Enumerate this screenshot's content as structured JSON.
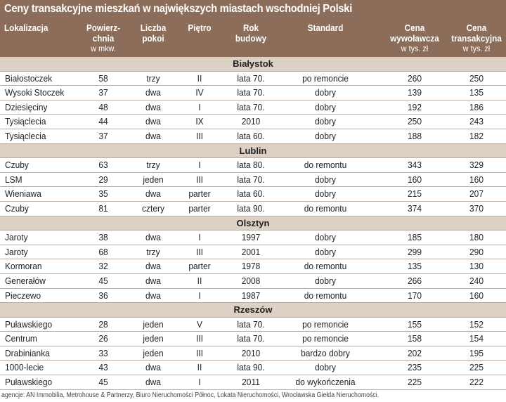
{
  "title": "Ceny transakcyjne mieszkań w największych miastach wschodniej Polski",
  "columns": [
    {
      "label": "Lokalizacja",
      "unit": ""
    },
    {
      "label": "Powierz-\nchnia",
      "unit": "w mkw."
    },
    {
      "label": "Liczba\npokoi",
      "unit": ""
    },
    {
      "label": "Piętro",
      "unit": ""
    },
    {
      "label": "Rok\nbudowy",
      "unit": ""
    },
    {
      "label": "Standard",
      "unit": ""
    },
    {
      "label": "Cena\nwywoławcza",
      "unit": "w tys. zł"
    },
    {
      "label": "Cena\ntransakcyjna",
      "unit": "w tys. zł"
    }
  ],
  "sections": [
    {
      "city": "Białystok",
      "rows": [
        [
          "Białostoczek",
          "58",
          "trzy",
          "II",
          "lata 70.",
          "po remoncie",
          "260",
          "250"
        ],
        [
          "Wysoki Stoczek",
          "37",
          "dwa",
          "IV",
          "lata 70.",
          "dobry",
          "139",
          "135"
        ],
        [
          "Dziesięciny",
          "48",
          "dwa",
          "I",
          "lata 70.",
          "dobry",
          "192",
          "186"
        ],
        [
          "Tysiąclecia",
          "44",
          "dwa",
          "IX",
          "2010",
          "dobry",
          "250",
          "243"
        ],
        [
          "Tysiąclecia",
          "37",
          "dwa",
          "III",
          "lata 60.",
          "dobry",
          "188",
          "182"
        ]
      ]
    },
    {
      "city": "Lublin",
      "rows": [
        [
          "Czuby",
          "63",
          "trzy",
          "I",
          "lata 80.",
          "do remontu",
          "343",
          "329"
        ],
        [
          "LSM",
          "29",
          "jeden",
          "III",
          "lata 70.",
          "dobry",
          "160",
          "160"
        ],
        [
          "Wieniawa",
          "35",
          "dwa",
          "parter",
          "lata 60.",
          "dobry",
          "215",
          "207"
        ],
        [
          "Czuby",
          "81",
          "cztery",
          "parter",
          "lata 90.",
          "do remontu",
          "374",
          "370"
        ]
      ]
    },
    {
      "city": "Olsztyn",
      "rows": [
        [
          "Jaroty",
          "38",
          "dwa",
          "I",
          "1997",
          "dobry",
          "185",
          "180"
        ],
        [
          "Jaroty",
          "68",
          "trzy",
          "III",
          "2001",
          "dobry",
          "299",
          "290"
        ],
        [
          "Kormoran",
          "32",
          "dwa",
          "parter",
          "1978",
          "do remontu",
          "135",
          "130"
        ],
        [
          "Generałów",
          "45",
          "dwa",
          "II",
          "2008",
          "dobry",
          "266",
          "240"
        ],
        [
          "Pieczewo",
          "36",
          "dwa",
          "I",
          "1987",
          "do remontu",
          "170",
          "160"
        ]
      ]
    },
    {
      "city": "Rzeszów",
      "rows": [
        [
          "Puławskiego",
          "28",
          "jeden",
          "V",
          "lata 70.",
          "po remoncie",
          "155",
          "152"
        ],
        [
          "Centrum",
          "26",
          "jeden",
          "III",
          "lata 70.",
          "po remoncie",
          "158",
          "154"
        ],
        [
          "Drabinianka",
          "33",
          "jeden",
          "III",
          "2010",
          "bardzo dobry",
          "202",
          "195"
        ],
        [
          "1000-lecie",
          "43",
          "dwa",
          "II",
          "lata 90.",
          "dobry",
          "235",
          "225"
        ],
        [
          "Puławskiego",
          "45",
          "dwa",
          "I",
          "2011",
          "do wykończenia",
          "225",
          "222"
        ]
      ]
    }
  ],
  "footnote": "agencje: AN Immobilia, Metrohouse & Partnerzy,  Biuro Nieruchomości Północ, Lokata Nieruchomości, Wrocławska Giełda Nieruchomości.",
  "colors": {
    "header": "#8b6d59",
    "section": "#ddd0c5"
  }
}
